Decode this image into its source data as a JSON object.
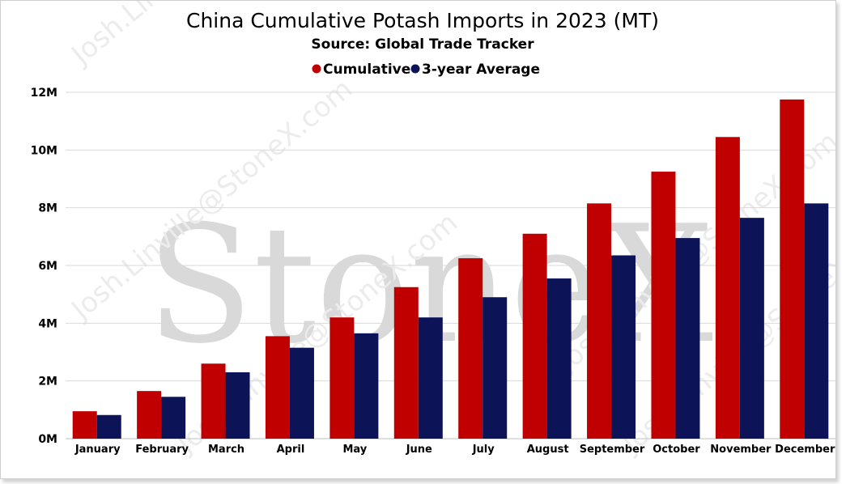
{
  "chart_data": {
    "type": "bar",
    "title": "China Cumulative Potash Imports in 2023 (MT)",
    "subtitle": "Source: Global Trade Tracker",
    "categories": [
      "January",
      "February",
      "March",
      "April",
      "May",
      "June",
      "July",
      "August",
      "September",
      "October",
      "November",
      "December"
    ],
    "series": [
      {
        "name": "Cumulative",
        "color": "#c00000",
        "values": [
          950000,
          1650000,
          2600000,
          3550000,
          4200000,
          5250000,
          6250000,
          7100000,
          8150000,
          9250000,
          10450000,
          11750000
        ]
      },
      {
        "name": "3-year Average",
        "color": "#0d1357",
        "values": [
          820000,
          1450000,
          2300000,
          3150000,
          3650000,
          4200000,
          4900000,
          5550000,
          6350000,
          6950000,
          7650000,
          8150000
        ]
      }
    ],
    "ylim": [
      0,
      12000000
    ],
    "yticks": [
      0,
      2000000,
      4000000,
      6000000,
      8000000,
      10000000,
      12000000
    ],
    "ytick_labels": [
      "0M",
      "2M",
      "4M",
      "6M",
      "8M",
      "10M",
      "12M"
    ],
    "xlabel": "",
    "ylabel": "",
    "legend_position": "top-center",
    "grid": true
  },
  "watermark": {
    "brand": "StoneX",
    "user": "Josh.Linville@StoneX.com"
  }
}
